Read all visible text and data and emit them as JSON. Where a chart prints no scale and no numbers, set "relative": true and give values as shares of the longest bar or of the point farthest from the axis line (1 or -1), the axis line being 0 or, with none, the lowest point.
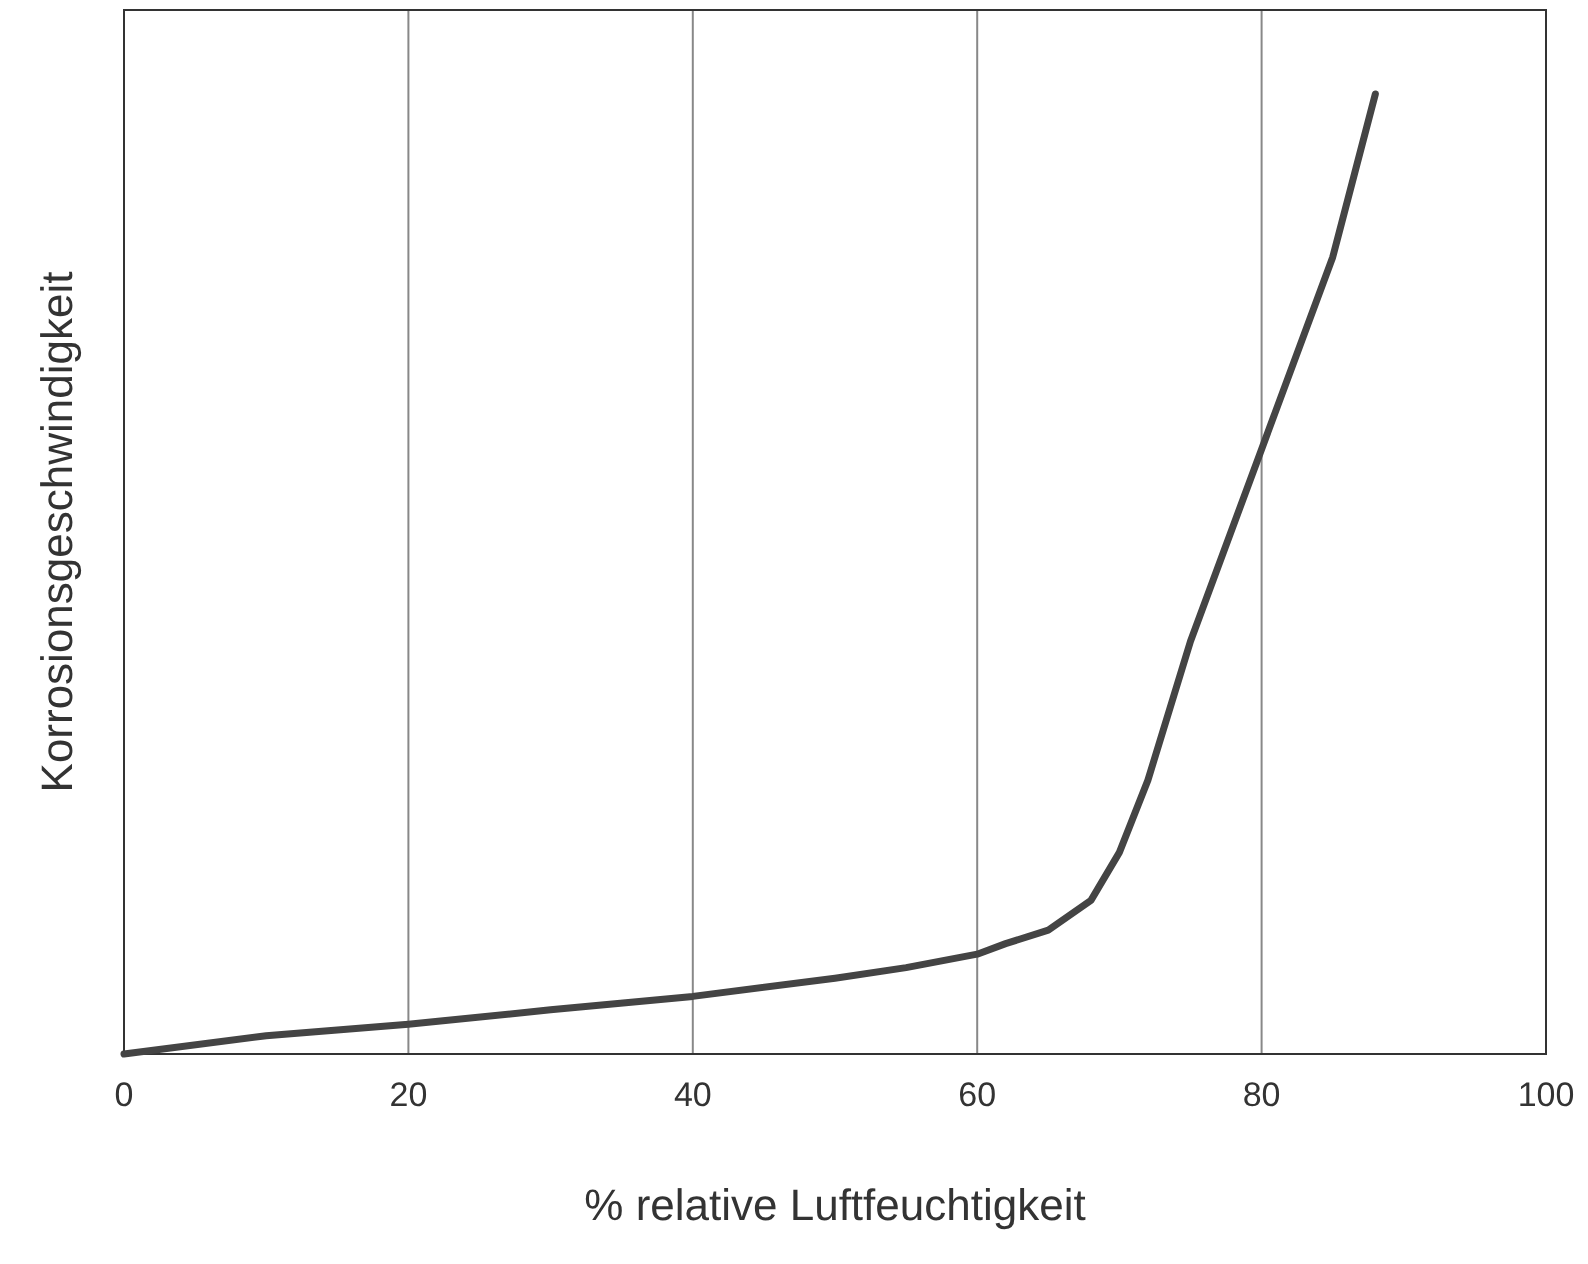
{
  "chart_data": {
    "type": "line",
    "xlabel": "% relative Luftfeuchtigkeit",
    "ylabel": "Korrosionsgeschwindigkeit",
    "relative": true,
    "x": [
      0,
      10,
      20,
      30,
      40,
      50,
      55,
      60,
      62,
      65,
      68,
      70,
      72,
      75,
      80,
      85,
      88
    ],
    "series": [
      {
        "color": "#444444",
        "values": [
          0,
          0.019,
          0.031,
          0.046,
          0.06,
          0.079,
          0.09,
          0.104,
          0.115,
          0.129,
          0.16,
          0.21,
          0.285,
          0.43,
          0.63,
          0.83,
          1
        ]
      }
    ],
    "xlim": [
      0,
      100
    ],
    "xticks": [
      0,
      20,
      40,
      60,
      80,
      100
    ],
    "grid": "x",
    "marker": "none",
    "line_style": "solid"
  }
}
